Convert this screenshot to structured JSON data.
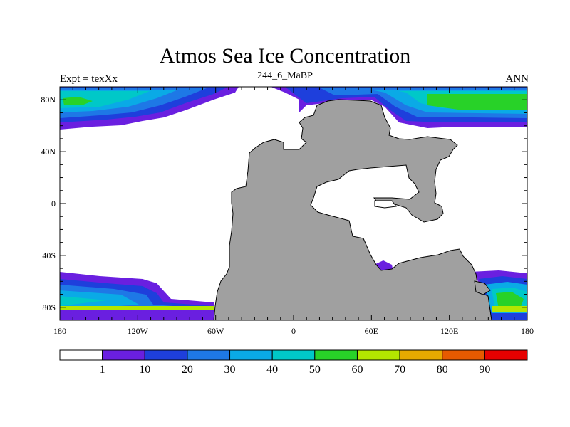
{
  "title": "Atmos Sea Ice Concentration",
  "subtitle_left": "Expt = texXx",
  "subtitle_center": "244_6_MaBP",
  "subtitle_right": "ANN",
  "map": {
    "lon_range": [
      -180,
      180
    ],
    "lat_range": [
      -90,
      90
    ],
    "land_color": "#a0a0a0",
    "ocean_color": "#ffffff",
    "x_ticks": [
      {
        "value": -180,
        "label": "180"
      },
      {
        "value": -120,
        "label": "120W"
      },
      {
        "value": -60,
        "label": "60W"
      },
      {
        "value": 0,
        "label": "0"
      },
      {
        "value": 60,
        "label": "60E"
      },
      {
        "value": 120,
        "label": "120E"
      },
      {
        "value": 180,
        "label": "180"
      }
    ],
    "y_ticks": [
      {
        "value": 80,
        "label": "80N"
      },
      {
        "value": 40,
        "label": "40N"
      },
      {
        "value": 0,
        "label": "0"
      },
      {
        "value": -40,
        "label": "40S"
      },
      {
        "value": -80,
        "label": "80S"
      }
    ]
  },
  "colorbar": {
    "colors": [
      "#ffffff",
      "#6a1fe0",
      "#1e3fdc",
      "#1e78e6",
      "#0aaae6",
      "#00c8c8",
      "#28d228",
      "#b4e600",
      "#e6aa00",
      "#e65a00",
      "#e60000"
    ],
    "labels": [
      "1",
      "10",
      "20",
      "30",
      "40",
      "50",
      "60",
      "70",
      "80",
      "90"
    ]
  }
}
